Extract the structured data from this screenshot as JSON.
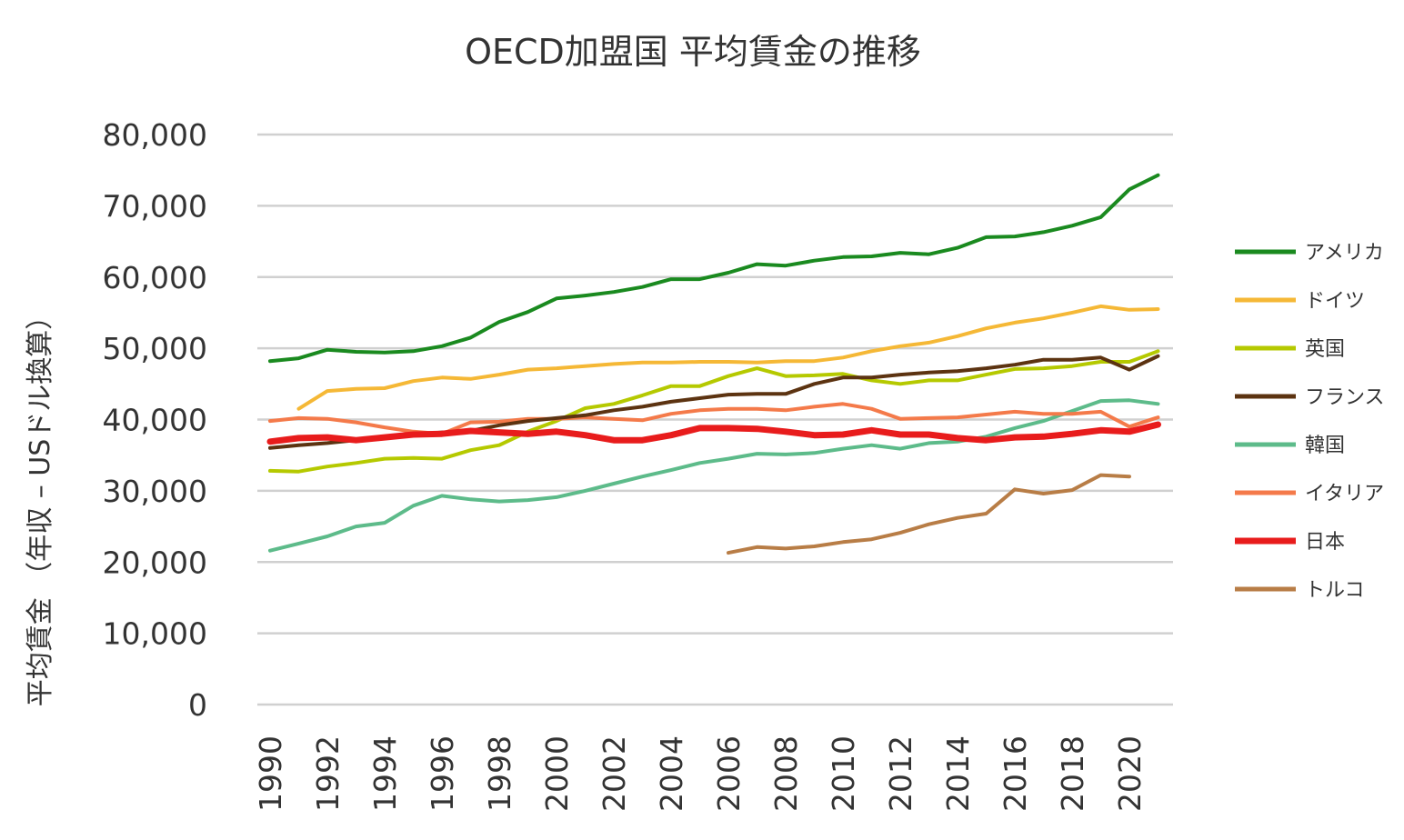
{
  "chart_data": {
    "type": "line",
    "title": "OECD加盟国 平均賃金の推移",
    "xlabel": "",
    "ylabel": "平均賃金 （年収 – USドル換算）",
    "ylim": [
      0,
      80000
    ],
    "yticks": [
      "0",
      "10,000",
      "20,000",
      "30,000",
      "40,000",
      "50,000",
      "60,000",
      "70,000",
      "80,000"
    ],
    "xticks": [
      "1990",
      "1992",
      "1994",
      "1996",
      "1998",
      "2000",
      "2002",
      "2004",
      "2006",
      "2008",
      "2010",
      "2012",
      "2014",
      "2016",
      "2018",
      "2020"
    ],
    "x": [
      1990,
      1991,
      1992,
      1993,
      1994,
      1995,
      1996,
      1997,
      1998,
      1999,
      2000,
      2001,
      2002,
      2003,
      2004,
      2005,
      2006,
      2007,
      2008,
      2009,
      2010,
      2011,
      2012,
      2013,
      2014,
      2015,
      2016,
      2017,
      2018,
      2019,
      2020,
      2021
    ],
    "grid": true,
    "legend_position": "right",
    "series": [
      {
        "name": "アメリカ",
        "color": "#1a8a1f",
        "values": [
          48200,
          48600,
          49800,
          49500,
          49400,
          49600,
          50300,
          51500,
          53700,
          55100,
          57000,
          57400,
          57900,
          58600,
          59700,
          59700,
          60600,
          61800,
          61600,
          62300,
          62800,
          62900,
          63400,
          63200,
          64100,
          65600,
          65700,
          66300,
          67200,
          68400,
          72300,
          74300
        ]
      },
      {
        "name": "ドイツ",
        "color": "#f5b836",
        "values": [
          null,
          41500,
          44000,
          44300,
          44400,
          45400,
          45900,
          45700,
          46300,
          47000,
          47200,
          47500,
          47800,
          48000,
          48000,
          48100,
          48100,
          48000,
          48200,
          48200,
          48700,
          49600,
          50300,
          50800,
          51700,
          52800,
          53600,
          54200,
          55000,
          55900,
          55400,
          55500
        ]
      },
      {
        "name": "英国",
        "color": "#b5c900",
        "values": [
          32800,
          32700,
          33400,
          33900,
          34500,
          34600,
          34500,
          35700,
          36400,
          38300,
          39800,
          41600,
          42200,
          43400,
          44700,
          44700,
          46100,
          47200,
          46100,
          46200,
          46400,
          45500,
          45000,
          45500,
          45500,
          46300,
          47100,
          47200,
          47500,
          48100,
          48100,
          49600
        ]
      },
      {
        "name": "フランス",
        "color": "#5c3311",
        "values": [
          36000,
          36400,
          36700,
          37100,
          37500,
          37900,
          38200,
          38400,
          39200,
          39800,
          40200,
          40600,
          41300,
          41800,
          42500,
          43000,
          43500,
          43600,
          43600,
          45000,
          45900,
          45900,
          46300,
          46600,
          46800,
          47200,
          47700,
          48400,
          48400,
          48700,
          47000,
          48900
        ]
      },
      {
        "name": "韓国",
        "color": "#5dbb8a",
        "values": [
          21600,
          22600,
          23600,
          25000,
          25500,
          27900,
          29300,
          28800,
          28500,
          28700,
          29100,
          30000,
          31000,
          32000,
          32900,
          33900,
          34500,
          35200,
          35100,
          35300,
          35900,
          36400,
          35900,
          36700,
          36900,
          37600,
          38800,
          39800,
          41200,
          42600,
          42700,
          42200
        ]
      },
      {
        "name": "イタリア",
        "color": "#f47a4a",
        "values": [
          39800,
          40200,
          40100,
          39600,
          38900,
          38300,
          38000,
          39600,
          39700,
          40100,
          40100,
          40300,
          40100,
          39900,
          40800,
          41300,
          41500,
          41500,
          41300,
          41800,
          42200,
          41500,
          40100,
          40200,
          40300,
          40700,
          41100,
          40800,
          40800,
          41100,
          39000,
          40300
        ]
      },
      {
        "name": "日本",
        "color": "#e81c1c",
        "values": [
          36900,
          37400,
          37500,
          37100,
          37500,
          37900,
          38000,
          38400,
          38200,
          38000,
          38300,
          37800,
          37100,
          37100,
          37800,
          38800,
          38800,
          38700,
          38300,
          37800,
          37900,
          38500,
          37900,
          37900,
          37400,
          37100,
          37500,
          37600,
          38000,
          38500,
          38300,
          39300
        ]
      },
      {
        "name": "トルコ",
        "color": "#b87d46",
        "values": [
          null,
          null,
          null,
          null,
          null,
          null,
          null,
          null,
          null,
          null,
          null,
          null,
          null,
          null,
          null,
          null,
          21300,
          22100,
          21900,
          22200,
          22800,
          23200,
          24100,
          25300,
          26200,
          26800,
          30200,
          29600,
          30100,
          32200,
          32000,
          null
        ]
      }
    ]
  }
}
